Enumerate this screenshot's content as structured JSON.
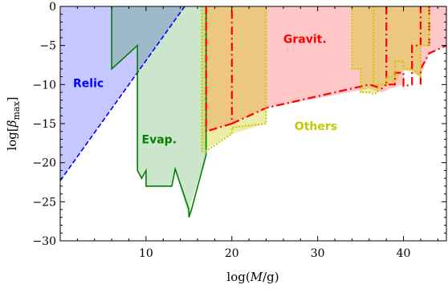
{
  "chart_data": {
    "type": "area",
    "xlabel_parts": {
      "prefix": "log(",
      "var": "M",
      "suffix": "/g)"
    },
    "ylabel_parts": {
      "prefix": "log[",
      "var": "β",
      "sub": "max",
      "suffix": "]"
    },
    "xlim": [
      0,
      45
    ],
    "ylim": [
      -30,
      0
    ],
    "xticks": [
      10,
      20,
      30,
      40
    ],
    "yticks": [
      0,
      -5,
      -10,
      -15,
      -20,
      -25,
      -30
    ],
    "ytick_labels": [
      "0",
      "−5",
      "−10",
      "−15",
      "−20",
      "−25",
      "−30"
    ],
    "regions": [
      {
        "name": "Relic",
        "fill": "#0000ff",
        "fill_opacity": 0.22,
        "points": [
          [
            0,
            0
          ],
          [
            14.5,
            0
          ],
          [
            0,
            -22.3
          ]
        ],
        "label": {
          "x": 1.5,
          "y": -10.3,
          "color": "#0000ff"
        }
      },
      {
        "name": "Evap.",
        "fill": "#008000",
        "fill_opacity": 0.2,
        "points": [
          [
            6,
            0
          ],
          [
            17,
            0
          ],
          [
            17,
            -19
          ],
          [
            15,
            -26
          ],
          [
            15,
            -27
          ],
          [
            13.4,
            -20.8
          ],
          [
            13,
            -23
          ],
          [
            10,
            -23
          ],
          [
            10,
            -21
          ],
          [
            9.5,
            -22
          ],
          [
            9,
            -21
          ],
          [
            9,
            -5
          ],
          [
            6,
            -8
          ]
        ],
        "label": {
          "x": 9.5,
          "y": -17.5,
          "color": "#008000"
        }
      },
      {
        "name": "Gravit.",
        "fill": "#ff0000",
        "fill_opacity": 0.22,
        "points": [
          [
            17,
            0
          ],
          [
            45,
            0
          ],
          [
            45,
            -5
          ],
          [
            43,
            -6
          ],
          [
            42,
            -9
          ],
          [
            41,
            -8.2
          ],
          [
            40,
            -8.2
          ],
          [
            40,
            -10
          ],
          [
            38.5,
            -10.5
          ],
          [
            37.5,
            -11
          ],
          [
            36,
            -10.5
          ],
          [
            24,
            -13
          ],
          [
            20,
            -15
          ],
          [
            17,
            -16
          ]
        ],
        "label": {
          "x": 26,
          "y": -4.7,
          "color": "#ff0000"
        }
      },
      {
        "name": "Others",
        "fill": "#c8c800",
        "fill_opacity": 0.35,
        "points": [
          [
            16.5,
            0
          ],
          [
            24,
            0
          ],
          [
            24,
            -15
          ],
          [
            20,
            -16.3
          ],
          [
            16.5,
            -18.5
          ]
        ],
        "label": {
          "x": 27.3,
          "y": -15.8,
          "color": "#c8c800"
        }
      },
      {
        "name": "",
        "fill": "#c8c800",
        "fill_opacity": 0.35,
        "points": [
          [
            34,
            0
          ],
          [
            43,
            0
          ],
          [
            43,
            -5
          ],
          [
            42,
            -5
          ],
          [
            42,
            -9
          ],
          [
            40,
            -8
          ],
          [
            39,
            -10
          ],
          [
            38,
            -10
          ],
          [
            37,
            -11
          ],
          [
            35,
            -11
          ],
          [
            35,
            -8
          ],
          [
            34,
            -8
          ]
        ],
        "label": null
      }
    ],
    "lines": [
      {
        "name": "",
        "color": "#0000ff",
        "dash": "6,3",
        "width": 1.6,
        "points": [
          [
            0,
            -22.3
          ],
          [
            14.5,
            0
          ]
        ]
      },
      {
        "name": "",
        "color": "#008000",
        "dash": "",
        "width": 1.6,
        "points": [
          [
            6,
            0
          ],
          [
            6,
            -8
          ],
          [
            9,
            -5
          ],
          [
            9,
            -21
          ],
          [
            9.5,
            -22
          ],
          [
            10,
            -21
          ],
          [
            10,
            -23
          ],
          [
            13,
            -23
          ],
          [
            13.4,
            -20.8
          ],
          [
            15,
            -26
          ],
          [
            15,
            -27
          ],
          [
            15.3,
            -26
          ],
          [
            17,
            -19
          ],
          [
            17,
            0
          ]
        ]
      },
      {
        "name": "",
        "color": "#ff0000",
        "dash": "10,4,2,4",
        "width": 2.2,
        "points": [
          [
            17,
            0
          ],
          [
            17,
            -16
          ],
          [
            20,
            -15
          ],
          [
            20,
            0
          ]
        ]
      },
      {
        "name": "",
        "color": "#ff0000",
        "dash": "10,4,2,4",
        "width": 2.2,
        "points": [
          [
            20,
            -15
          ],
          [
            24,
            -13
          ],
          [
            36,
            -10
          ],
          [
            37.5,
            -10.5
          ],
          [
            38,
            -10
          ]
        ]
      },
      {
        "name": "",
        "color": "#ff0000",
        "dash": "10,4,2,4",
        "width": 2.2,
        "points": [
          [
            38,
            0
          ],
          [
            38,
            -10
          ],
          [
            39,
            -10
          ],
          [
            39,
            -8.5
          ],
          [
            40,
            -8.5
          ],
          [
            40,
            -10.2
          ],
          [
            41,
            -10
          ],
          [
            41,
            -5
          ],
          [
            42,
            -5
          ],
          [
            42,
            0
          ]
        ]
      },
      {
        "name": "",
        "color": "#ff0000",
        "dash": "10,4,2,4",
        "width": 2.2,
        "points": [
          [
            42,
            -10
          ],
          [
            42,
            -8
          ],
          [
            43,
            -6
          ],
          [
            45,
            -5
          ]
        ]
      },
      {
        "name": "",
        "color": "#ff0000",
        "dash": "10,4,2,4",
        "width": 2.2,
        "points": [
          [
            43,
            0
          ],
          [
            43,
            -5
          ]
        ]
      },
      {
        "name": "",
        "color": "#c8c800",
        "dash": "2,2",
        "width": 2,
        "points": [
          [
            16.5,
            0
          ],
          [
            16.5,
            -18.5
          ],
          [
            17,
            -18.8
          ],
          [
            17,
            -18.5
          ],
          [
            20,
            -16.3
          ],
          [
            20,
            -15.5
          ],
          [
            24,
            -15
          ],
          [
            24,
            0
          ]
        ]
      },
      {
        "name": "",
        "color": "#c8c800",
        "dash": "2,2",
        "width": 2,
        "points": [
          [
            34,
            0
          ],
          [
            34,
            -8
          ],
          [
            35,
            -8
          ],
          [
            35,
            -11
          ],
          [
            36,
            -11
          ],
          [
            36.5,
            -11.2
          ],
          [
            37,
            -11
          ],
          [
            37,
            -10
          ],
          [
            38,
            -10
          ],
          [
            38,
            -9
          ],
          [
            39,
            -9
          ],
          [
            39,
            -7
          ],
          [
            40,
            -7
          ],
          [
            40,
            -8
          ],
          [
            41,
            -8
          ],
          [
            41,
            -8
          ],
          [
            42,
            -9
          ],
          [
            42,
            -5
          ],
          [
            43,
            -5
          ],
          [
            43,
            0
          ]
        ]
      },
      {
        "name": "",
        "color": "#c8c800",
        "dash": "2,2",
        "width": 2,
        "points": [
          [
            36.5,
            0
          ],
          [
            36.5,
            -10
          ]
        ]
      }
    ]
  }
}
